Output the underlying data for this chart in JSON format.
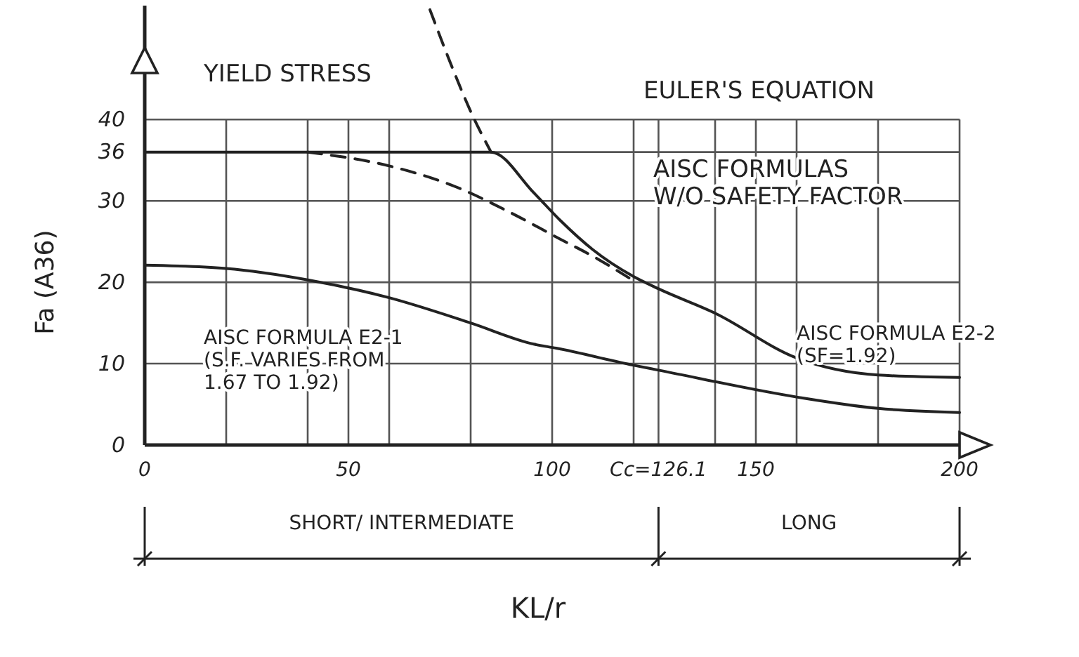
{
  "chart_data": {
    "type": "line",
    "xlabel": "KL/r",
    "ylabel": "Fa (A36)",
    "xlim": [
      0,
      200
    ],
    "ylim": [
      0,
      54
    ],
    "xticks": [
      0,
      {
        "value": 20,
        "label": null
      },
      {
        "value": 40,
        "label": null
      },
      50,
      {
        "value": 60,
        "label": null
      },
      {
        "value": 80,
        "label": null
      },
      100,
      {
        "value": 120,
        "label": null
      },
      {
        "value": 126.1,
        "label": "Cc=126.1"
      },
      {
        "value": 140,
        "label": null
      },
      150,
      {
        "value": 160,
        "label": null
      },
      {
        "value": 180,
        "label": null
      },
      200
    ],
    "yticks": [
      0,
      10,
      20,
      30,
      36,
      40
    ],
    "grid": true,
    "marker": "none",
    "series": [
      {
        "color": "#222222",
        "line_style": "dashed",
        "x": [
          70,
          75,
          80,
          85
        ],
        "values": [
          53.5,
          47,
          41,
          36
        ]
      },
      {
        "color": "#222222",
        "line_style": "solid",
        "x": [
          0,
          85,
          95.5,
          102,
          110,
          120,
          126.1,
          140,
          160,
          180,
          200
        ],
        "values": [
          36,
          36,
          31,
          27.6,
          24,
          20.7,
          19.2,
          16.2,
          10.7,
          8.6,
          8.3
        ]
      },
      {
        "color": "#222222",
        "line_style": "dashed",
        "x": [
          40,
          60,
          76.5,
          90,
          102,
          110,
          119
        ],
        "values": [
          36,
          34.3,
          31.7,
          28.5,
          25.3,
          23.2,
          20.5
        ]
      },
      {
        "color": "#222222",
        "line_style": "solid",
        "x": [
          0,
          20,
          40,
          60,
          80,
          95.5,
          101,
          120,
          126.1,
          160,
          180,
          200
        ],
        "values": [
          22.1,
          21.7,
          20.3,
          18.1,
          15,
          12.4,
          11.9,
          9.8,
          9.2,
          5.9,
          4.5,
          4
        ]
      }
    ],
    "annotations": [
      "YIELD STRESS",
      "EULER'S EQUATION",
      "AISC FORMULAS\nW/O SAFETY FACTOR",
      "AISC FORMULA E2-1\n(S.F. VARIES FROM\n1.67 TO 1.92)",
      "AISC FORMULA E2-2\n(SF=1.92)",
      "SHORT/ INTERMEDIATE",
      "LONG"
    ]
  }
}
